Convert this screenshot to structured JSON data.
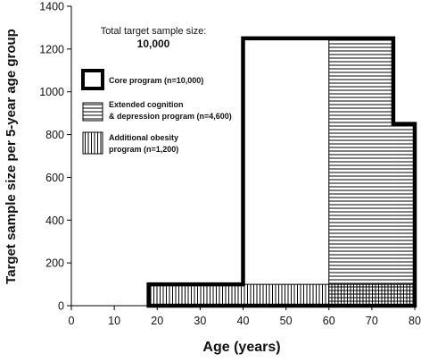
{
  "chart_data": {
    "type": "area",
    "xlabel": "Age (years)",
    "ylabel": "Target sample size per 5-year age group",
    "xlim": [
      0,
      80
    ],
    "ylim": [
      0,
      1400
    ],
    "xticks": [
      "0",
      "10",
      "20",
      "30",
      "40",
      "50",
      "60",
      "70",
      "80"
    ],
    "yticks": [
      "0",
      "200",
      "400",
      "600",
      "800",
      "1000",
      "1200",
      "1400"
    ],
    "grid": false,
    "legend_position": "upper-left",
    "annotation": {
      "line1": "Total target sample size:",
      "line2": "10,000"
    },
    "series": [
      {
        "name": "Core program (n=10,000)",
        "pattern": "thick-outline",
        "x": [
          18,
          40,
          40,
          75,
          75,
          80
        ],
        "y": [
          100,
          100,
          1250,
          1250,
          850,
          850
        ]
      },
      {
        "name": "Extended cognition & depression program (n=4,600)",
        "pattern": "horizontal-hatch",
        "x": [
          60,
          75,
          75,
          80
        ],
        "y": [
          1250,
          1250,
          850,
          850
        ]
      },
      {
        "name": "Additional obesity program (n=1,200)",
        "pattern": "vertical-hatch",
        "x": [
          18,
          80
        ],
        "y": [
          100,
          100
        ]
      }
    ],
    "legend": [
      {
        "line1": "Core program (n=10,000)",
        "line2": ""
      },
      {
        "line1": "Extended cognition",
        "line2": "& depression program (n=4,600)"
      },
      {
        "line1": "Additional obesity",
        "line2": "program (n=1,200)"
      }
    ]
  }
}
